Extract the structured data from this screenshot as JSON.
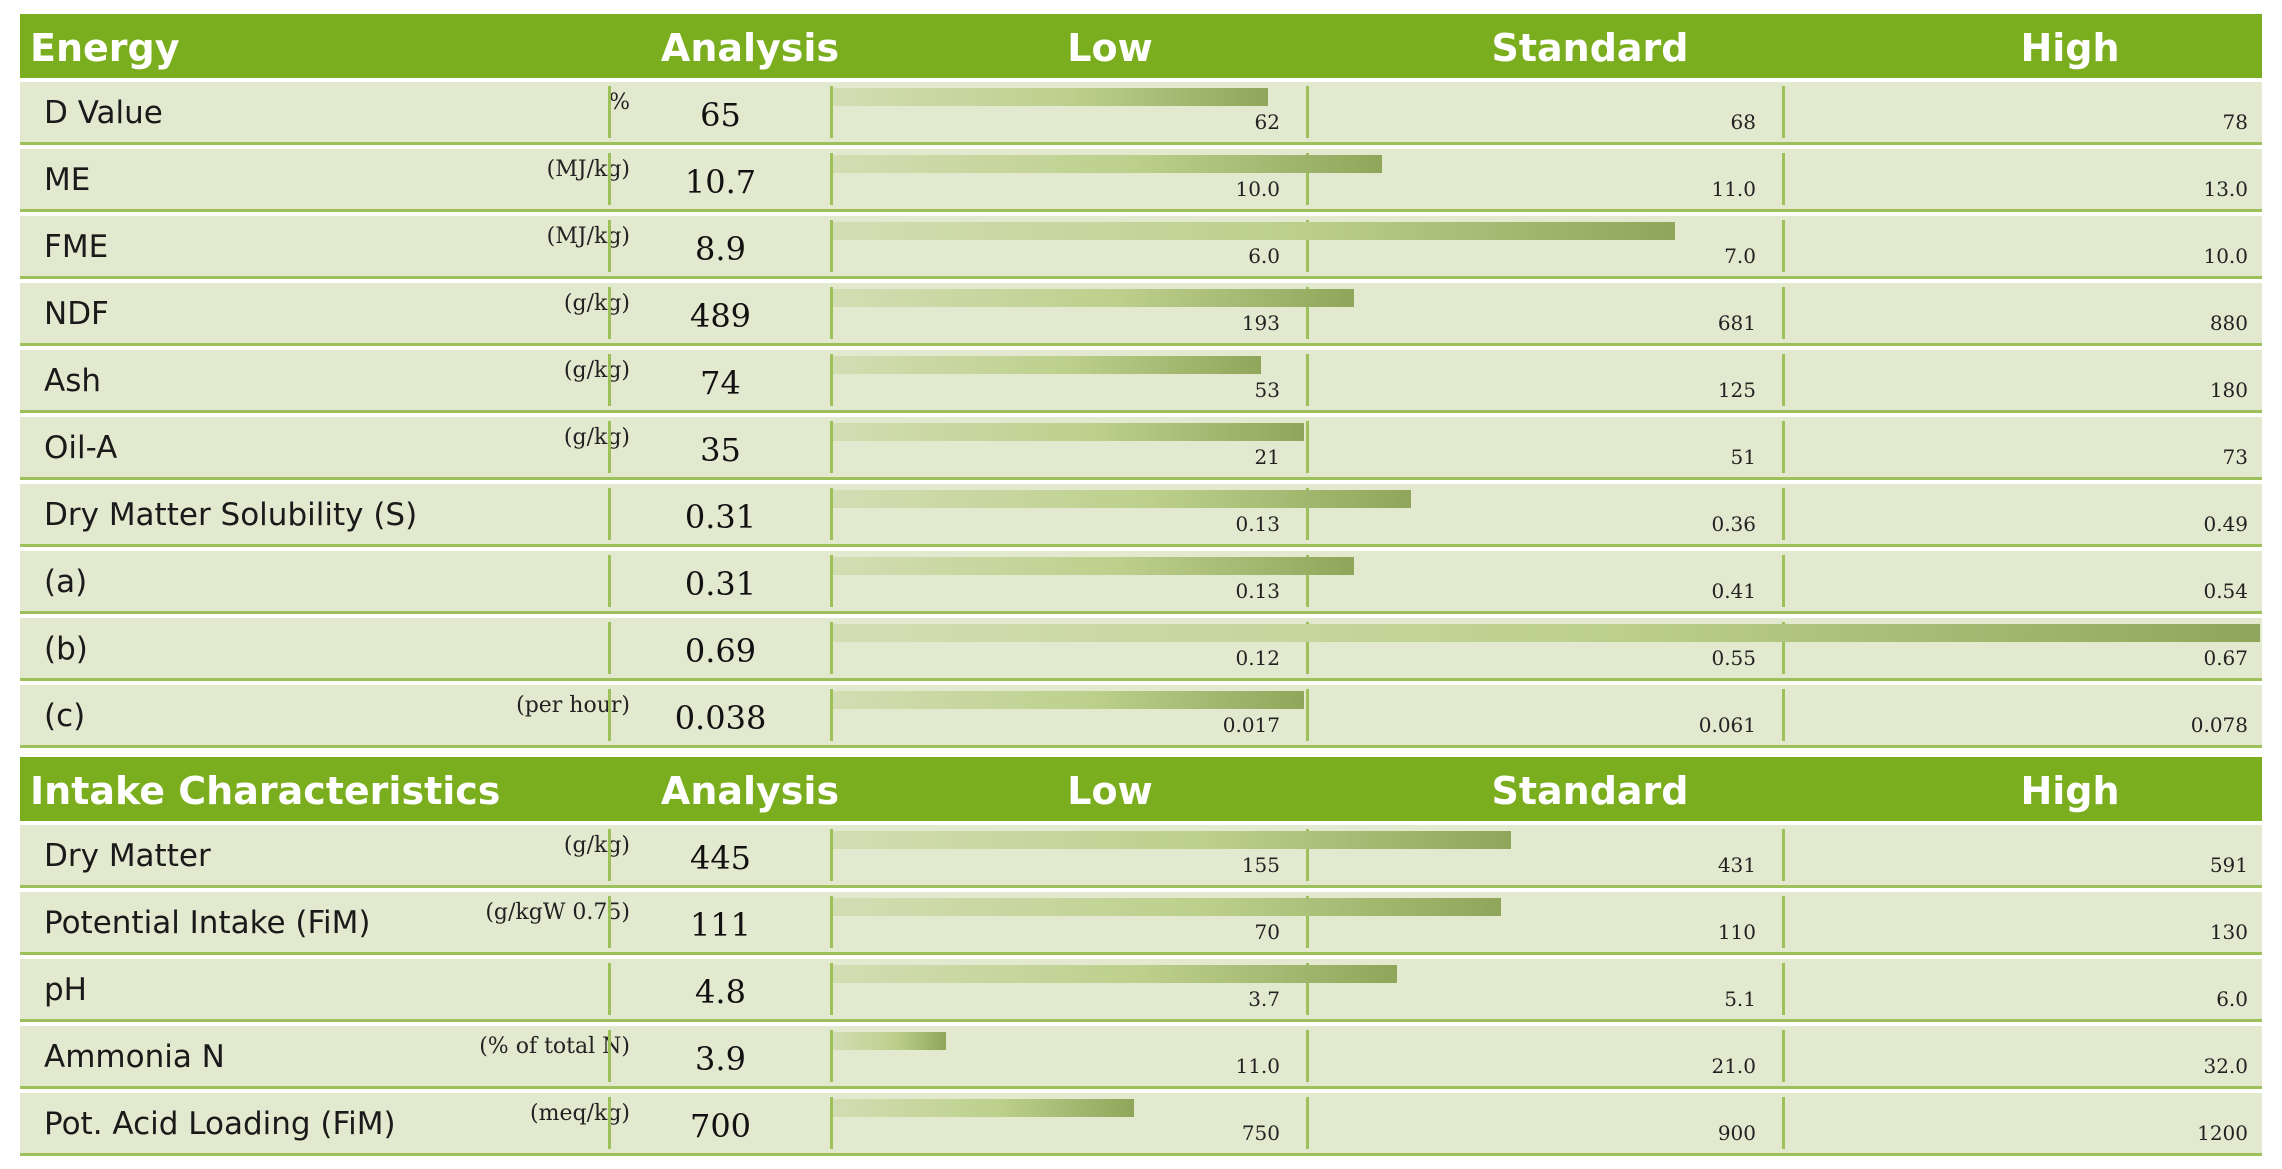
{
  "colors": {
    "header_green": "#7aae1e",
    "row_bg": "#e3e9ce",
    "bar_light": "#d3ddb3",
    "bar_dark": "#8fa65a"
  },
  "tables": [
    {
      "title": "Energy",
      "headers": {
        "analysis": "Analysis",
        "low": "Low",
        "standard": "Standard",
        "high": "High"
      },
      "rows": [
        {
          "label": "D Value",
          "unit": "%",
          "value": "65",
          "low": "62",
          "standard": "68",
          "high": "78",
          "fill": 0.305
        },
        {
          "label": "ME",
          "unit": "(MJ/kg)",
          "value": "10.7",
          "low": "10.0",
          "standard": "11.0",
          "high": "13.0",
          "fill": 0.385
        },
        {
          "label": "FME",
          "unit": "(MJ/kg)",
          "value": "8.9",
          "low": "6.0",
          "standard": "7.0",
          "high": "10.0",
          "fill": 0.59
        },
        {
          "label": "NDF",
          "unit": "(g/kg)",
          "value": "489",
          "low": "193",
          "standard": "681",
          "high": "880",
          "fill": 0.365
        },
        {
          "label": "Ash",
          "unit": "(g/kg)",
          "value": "74",
          "low": "53",
          "standard": "125",
          "high": "180",
          "fill": 0.3
        },
        {
          "label": "Oil-A",
          "unit": "(g/kg)",
          "value": "35",
          "low": "21",
          "standard": "51",
          "high": "73",
          "fill": 0.33
        },
        {
          "label": "Dry Matter Solubility (S)",
          "unit": "",
          "value": "0.31",
          "low": "0.13",
          "standard": "0.36",
          "high": "0.49",
          "fill": 0.405
        },
        {
          "label": "(a)",
          "unit": "",
          "value": "0.31",
          "low": "0.13",
          "standard": "0.41",
          "high": "0.54",
          "fill": 0.365
        },
        {
          "label": "(b)",
          "unit": "",
          "value": "0.69",
          "low": "0.12",
          "standard": "0.55",
          "high": "0.67",
          "fill": 1.0
        },
        {
          "label": "(c)",
          "unit": "(per hour)",
          "value": "0.038",
          "low": "0.017",
          "standard": "0.061",
          "high": "0.078",
          "fill": 0.33
        }
      ]
    },
    {
      "title": "Intake Characteristics",
      "headers": {
        "analysis": "Analysis",
        "low": "Low",
        "standard": "Standard",
        "high": "High"
      },
      "rows": [
        {
          "label": "Dry Matter",
          "unit": "(g/kg)",
          "value": "445",
          "low": "155",
          "standard": "431",
          "high": "591",
          "fill": 0.475
        },
        {
          "label": "Potential Intake (FiM)",
          "unit": "(g/kgW 0.75)",
          "value": "111",
          "low": "70",
          "standard": "110",
          "high": "130",
          "fill": 0.468
        },
        {
          "label": "pH",
          "unit": "",
          "value": "4.8",
          "low": "3.7",
          "standard": "5.1",
          "high": "6.0",
          "fill": 0.395
        },
        {
          "label": "Ammonia N",
          "unit": "(% of total N)",
          "value": "3.9",
          "low": "11.0",
          "standard": "21.0",
          "high": "32.0",
          "fill": 0.079
        },
        {
          "label": "Pot. Acid Loading (FiM)",
          "unit": "(meq/kg)",
          "value": "700",
          "low": "750",
          "standard": "900",
          "high": "1200",
          "fill": 0.211
        }
      ]
    }
  ]
}
